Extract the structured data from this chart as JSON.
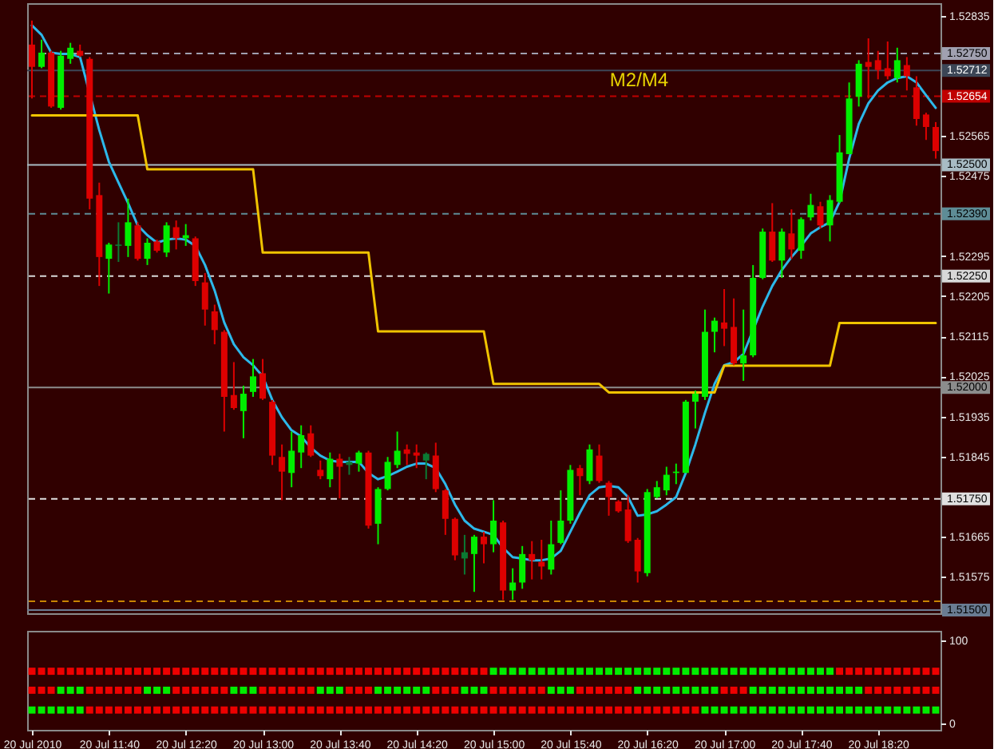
{
  "chart_data": [
    {
      "type": "candlestick",
      "categories": [
        null,
        null,
        null,
        null,
        null,
        null,
        null,
        null,
        null,
        null,
        null,
        null,
        null,
        null,
        null,
        null,
        null,
        null,
        null,
        null,
        null,
        null,
        null,
        null,
        null,
        null,
        null,
        null,
        null,
        null,
        null,
        null,
        null,
        null,
        null,
        null,
        null,
        null,
        null,
        null,
        null,
        null,
        null,
        null,
        null,
        null,
        null,
        null,
        null,
        null,
        null,
        null,
        null,
        null,
        null,
        null,
        null,
        null,
        null,
        null,
        null,
        null,
        null,
        null,
        null,
        null,
        null,
        null,
        null,
        null,
        null,
        null,
        null,
        null,
        null,
        null,
        null,
        null,
        null,
        null,
        null,
        null,
        null,
        null,
        null,
        null,
        null,
        null,
        null,
        null,
        null,
        null,
        null,
        null,
        null
      ],
      "ohlc": [
        [
          1.5277,
          1.52824,
          1.52649,
          1.5272
        ],
        [
          1.5272,
          1.52781,
          1.52717,
          1.52752
        ],
        [
          1.52752,
          1.52756,
          1.52628,
          1.52631
        ],
        [
          1.52628,
          1.52756,
          1.52624,
          1.52745
        ],
        [
          1.52738,
          1.52774,
          1.52727,
          1.52763
        ],
        [
          1.52756,
          1.5277,
          1.52742,
          1.52745
        ],
        [
          1.52738,
          1.52742,
          1.524,
          1.52424
        ],
        [
          1.52432,
          1.5246,
          1.52228,
          1.52293
        ],
        [
          1.52289,
          1.52325,
          1.52211,
          1.52321
        ],
        [
          1.52318,
          1.52371,
          1.52282,
          1.52321
        ],
        [
          1.52318,
          1.52424,
          1.52293,
          1.52371
        ],
        [
          1.52364,
          1.52371,
          1.52285,
          1.52289
        ],
        [
          1.52289,
          1.52335,
          1.52275,
          1.52325
        ],
        [
          1.52328,
          1.52332,
          1.52303,
          1.52307
        ],
        [
          1.52303,
          1.52371,
          1.52293,
          1.52364
        ],
        [
          1.5236,
          1.52375,
          1.5231,
          1.52335
        ],
        [
          1.52335,
          1.52367,
          1.52318,
          1.52342
        ],
        [
          1.52335,
          1.52339,
          1.52228,
          1.52239
        ],
        [
          1.52236,
          1.52257,
          1.52139,
          1.52175
        ],
        [
          1.52171,
          1.52186,
          1.52097,
          1.52129
        ],
        [
          1.52125,
          1.52129,
          1.51901,
          1.51979
        ],
        [
          1.51983,
          1.52057,
          1.5195,
          1.51954
        ],
        [
          1.51947,
          1.52004,
          1.51886,
          1.51986
        ],
        [
          1.5199,
          1.52064,
          1.51979,
          1.52025
        ],
        [
          1.52032,
          1.52064,
          1.51972,
          1.51975
        ],
        [
          1.51968,
          1.51972,
          1.51826,
          1.51847
        ],
        [
          1.51844,
          1.51872,
          1.51747,
          1.51811
        ],
        [
          1.51808,
          1.51901,
          1.51776,
          1.51858
        ],
        [
          1.51854,
          1.51915,
          1.51819,
          1.51893
        ],
        [
          1.51897,
          1.51915,
          1.51844,
          1.51847
        ],
        [
          1.51815,
          1.51836,
          1.51794,
          1.51801
        ],
        [
          1.51794,
          1.51854,
          1.51776,
          1.5184
        ],
        [
          1.5184,
          1.51851,
          1.51751,
          1.51822
        ],
        [
          1.51826,
          1.51844,
          1.51804,
          1.51833
        ],
        [
          1.51829,
          1.51858,
          1.51811,
          1.51854
        ],
        [
          1.51854,
          1.51858,
          1.51683,
          1.5169
        ],
        [
          1.51694,
          1.51776,
          1.51648,
          1.51772
        ],
        [
          1.51772,
          1.51844,
          1.51769,
          1.51833
        ],
        [
          1.51826,
          1.51901,
          1.51819,
          1.51858
        ],
        [
          1.51861,
          1.51872,
          1.51826,
          1.51851
        ],
        [
          1.51854,
          1.51872,
          1.51819,
          1.51847
        ],
        [
          1.51836,
          1.51854,
          1.51794,
          1.51851
        ],
        [
          1.51847,
          1.51876,
          1.51765,
          1.51772
        ],
        [
          1.51769,
          1.51772,
          1.51669,
          1.51705
        ],
        [
          1.51705,
          1.51708,
          1.51612,
          1.51623
        ],
        [
          1.51616,
          1.51669,
          1.5158,
          1.5163
        ],
        [
          1.51626,
          1.51669,
          1.51541,
          1.51665
        ],
        [
          1.51665,
          1.51676,
          1.51605,
          1.51648
        ],
        [
          1.51648,
          1.51747,
          1.5163,
          1.51701
        ],
        [
          1.51697,
          1.51701,
          1.51523,
          1.51544
        ],
        [
          1.51544,
          1.51594,
          1.51523,
          1.51562
        ],
        [
          1.51562,
          1.51644,
          1.51548,
          1.51626
        ],
        [
          1.51626,
          1.51655,
          1.51569,
          1.51612
        ],
        [
          1.51608,
          1.51658,
          1.51569,
          1.51598
        ],
        [
          1.51591,
          1.51701,
          1.5158,
          1.51648
        ],
        [
          1.51651,
          1.51769,
          1.51648,
          1.51701
        ],
        [
          1.51701,
          1.51826,
          1.51694,
          1.51815
        ],
        [
          1.51819,
          1.51826,
          1.51758,
          1.51801
        ],
        [
          1.5179,
          1.51872,
          1.51783,
          1.51861
        ],
        [
          1.51847,
          1.51872,
          1.51786,
          1.5179
        ],
        [
          1.51786,
          1.5179,
          1.51712,
          1.51754
        ],
        [
          1.51744,
          1.51747,
          1.51719,
          1.51722
        ],
        [
          1.51726,
          1.51758,
          1.51651,
          1.51655
        ],
        [
          1.51658,
          1.51662,
          1.51562,
          1.51587
        ],
        [
          1.51583,
          1.51772,
          1.51576,
          1.51765
        ],
        [
          1.51754,
          1.5179,
          1.51751,
          1.51776
        ],
        [
          1.51769,
          1.51822,
          1.51758,
          1.51804
        ],
        [
          1.51808,
          1.51829,
          1.51783,
          1.51811
        ],
        [
          1.51808,
          1.51972,
          1.51808,
          1.51968
        ],
        [
          1.51968,
          1.51993,
          1.51908,
          1.51986
        ],
        [
          1.51979,
          1.52175,
          1.51972,
          1.52125
        ],
        [
          1.52125,
          1.52157,
          1.52079,
          1.5215
        ],
        [
          1.52146,
          1.52221,
          1.52093,
          1.52132
        ],
        [
          1.52136,
          1.522,
          1.5205,
          1.52054
        ],
        [
          1.52054,
          1.52175,
          1.52015,
          1.52072
        ],
        [
          1.52072,
          1.52275,
          1.52068,
          1.52246
        ],
        [
          1.52246,
          1.52357,
          1.52243,
          1.5235
        ],
        [
          1.5235,
          1.52414,
          1.52282,
          1.52285
        ],
        [
          1.52285,
          1.52357,
          1.52246,
          1.5235
        ],
        [
          1.52346,
          1.524,
          1.52289,
          1.5231
        ],
        [
          1.52307,
          1.52382,
          1.52289,
          1.52378
        ],
        [
          1.52382,
          1.52435,
          1.52375,
          1.5241
        ],
        [
          1.52407,
          1.52417,
          1.52357,
          1.52364
        ],
        [
          1.52364,
          1.52432,
          1.52328,
          1.52421
        ],
        [
          1.52417,
          1.52567,
          1.52414,
          1.52528
        ],
        [
          1.52524,
          1.52685,
          1.52524,
          1.52649
        ],
        [
          1.52653,
          1.52735,
          1.52631,
          1.52727
        ],
        [
          1.52731,
          1.52784,
          1.52649,
          1.5272
        ],
        [
          1.52735,
          1.52756,
          1.52692,
          1.52713
        ],
        [
          1.52717,
          1.52777,
          1.52692,
          1.52699
        ],
        [
          1.52695,
          1.52763,
          1.52685,
          1.52735
        ],
        [
          1.52724,
          1.52742,
          1.52667,
          1.52699
        ],
        [
          1.52674,
          1.52699,
          1.52588,
          1.52603
        ],
        [
          1.52613,
          1.52617,
          1.52556,
          1.52585
        ],
        [
          1.52585,
          1.52596,
          1.52514,
          1.52531
        ]
      ],
      "colors": [
        "#dd0000",
        "#00ee00",
        "#dd0000",
        "#00ee00",
        "#00ee00",
        "#dd0000",
        "#dd0000",
        "#dd0000",
        "#00ee00",
        "#0b7a33",
        "#00ee00",
        "#dd0000",
        "#00ee00",
        "#dd0000",
        "#00ee00",
        "#dd0000",
        "#00ee00",
        "#dd0000",
        "#dd0000",
        "#dd0000",
        "#dd0000",
        "#dd0000",
        "#00ee00",
        "#00ee00",
        "#dd0000",
        "#dd0000",
        "#dd0000",
        "#00ee00",
        "#00ee00",
        "#dd0000",
        "#dd0000",
        "#00ee00",
        "#dd0000",
        "#0b7a33",
        "#00ee00",
        "#dd0000",
        "#00ee00",
        "#00ee00",
        "#00ee00",
        "#dd0000",
        "#dd0000",
        "#0b7a33",
        "#dd0000",
        "#dd0000",
        "#dd0000",
        "#0b7a33",
        "#00ee00",
        "#dd0000",
        "#00ee00",
        "#dd0000",
        "#00ee00",
        "#00ee00",
        "#dd0000",
        "#dd0000",
        "#00ee00",
        "#00ee00",
        "#00ee00",
        "#dd0000",
        "#00ee00",
        "#dd0000",
        "#dd0000",
        "#dd0000",
        "#dd0000",
        "#dd0000",
        "#00ee00",
        "#00ee00",
        "#00ee00",
        "#00ee00",
        "#00ee00",
        "#00ee00",
        "#00ee00",
        "#00ee00",
        "#dd0000",
        "#dd0000",
        "#00ee00",
        "#00ee00",
        "#00ee00",
        "#dd0000",
        "#00ee00",
        "#dd0000",
        "#00ee00",
        "#00ee00",
        "#dd0000",
        "#00ee00",
        "#00ee00",
        "#00ee00",
        "#00ee00",
        "#dd0000",
        "#dd0000",
        "#dd0000",
        "#00ee00",
        "#dd0000",
        "#dd0000",
        "#dd0000",
        "#dd0000"
      ],
      "series": [
        {
          "type": "line",
          "color": "#2cb8ea",
          "values": [
            1.52813,
            1.52792,
            1.52752,
            1.52749,
            1.52749,
            1.52742,
            null,
            1.52578,
            1.52507,
            1.5246,
            1.52414,
            1.52364,
            1.52342,
            1.52325,
            1.52332,
            1.52335,
            1.52332,
            1.52318,
            1.52275,
            1.52218,
            1.52146,
            1.52097,
            1.52068,
            1.5205,
            1.52025,
            1.51972,
            1.51933,
            1.51904,
            1.5189,
            1.51865,
            1.51847,
            1.51836,
            1.51833,
            1.51833,
            1.51833,
            1.51808,
            1.51794,
            1.51801,
            1.51811,
            1.51822,
            1.51829,
            1.51829,
            1.51819,
            1.51783,
            1.51737,
            1.51701,
            1.51683,
            1.51676,
            1.51669,
            1.5164,
            1.51619,
            1.51616,
            1.51612,
            1.51612,
            1.51616,
            1.51633,
            1.51676,
            1.51719,
            1.51758,
            1.51776,
            1.51779,
            1.51776,
            1.51754,
            1.51712,
            1.51715,
            1.51722,
            1.51737,
            1.51754,
            1.51808,
            1.51872,
            1.51943,
            1.52008,
            1.5205,
            1.52057,
            1.52075,
            1.52129,
            1.52182,
            1.52228,
            1.52264,
            1.52293,
            1.52318,
            1.52346,
            1.5236,
            1.52371,
            1.52417,
            1.52514,
            1.52592,
            1.52638,
            1.52667,
            1.52685,
            1.52695,
            1.52699,
            1.52685,
            1.52656,
            1.52628
          ]
        },
        {
          "type": "line",
          "color": "#f0c400",
          "values": [
            1.52611,
            1.52611,
            1.52611,
            1.52611,
            1.52611,
            1.52611,
            1.52611,
            1.52611,
            1.52611,
            1.52611,
            1.52611,
            1.52611,
            1.5249,
            1.5249,
            1.5249,
            1.5249,
            1.5249,
            1.5249,
            1.5249,
            1.5249,
            1.5249,
            1.5249,
            1.5249,
            1.5249,
            1.52303,
            1.52303,
            1.52303,
            1.52303,
            1.52303,
            1.52303,
            1.52303,
            1.52303,
            1.52303,
            1.52303,
            1.52303,
            1.52303,
            1.52126,
            1.52126,
            1.52126,
            1.52126,
            1.52126,
            1.52126,
            1.52126,
            1.52126,
            1.52126,
            1.52126,
            1.52126,
            1.52126,
            1.52008,
            1.52008,
            1.52008,
            1.52008,
            1.52008,
            1.52008,
            1.52008,
            1.52008,
            1.52008,
            1.52008,
            1.52008,
            1.52008,
            1.51989,
            1.51989,
            1.51989,
            1.51989,
            1.51989,
            1.51989,
            1.51989,
            1.51989,
            1.51989,
            1.51989,
            1.51989,
            1.51989,
            1.52049,
            1.52049,
            1.52049,
            1.52049,
            1.52049,
            1.52049,
            1.52049,
            1.52049,
            1.52049,
            1.52049,
            1.52049,
            1.52049,
            1.52145,
            1.52145,
            1.52145,
            1.52145,
            1.52145,
            1.52145,
            1.52145,
            1.52145,
            1.52145,
            1.52145,
            1.52145
          ]
        }
      ],
      "ylim": [
        1.51493,
        1.52863
      ],
      "yticks": [
        1.52835,
        1.52565,
        1.52475,
        1.52295,
        1.52205,
        1.52115,
        1.52025,
        1.51935,
        1.51845,
        1.51665,
        1.51575
      ],
      "ref_lines": [
        {
          "axis": "y",
          "value": 1.5275,
          "label": "1.52750",
          "color": "#a0a0b0",
          "line_style": "dashed"
        },
        {
          "axis": "y",
          "value": 1.52712,
          "label": "1.52712",
          "color": "#3c4656",
          "line_style": "solid"
        },
        {
          "axis": "y",
          "value": 1.52654,
          "label": "1.52654",
          "color": "#c00000",
          "line_style": "dashed"
        },
        {
          "axis": "y",
          "value": 1.525,
          "label": "1.52500",
          "color": "#a8bcc4",
          "line_style": "solid"
        },
        {
          "axis": "y",
          "value": 1.5239,
          "label": "1.52390",
          "color": "#5e8c96",
          "line_style": "dashed"
        },
        {
          "axis": "y",
          "value": 1.5225,
          "label": "1.52250",
          "color": "#d8d8d8",
          "line_style": "dashed"
        },
        {
          "axis": "y",
          "value": 1.52,
          "label": "1.52000",
          "color": "#8c8c8c",
          "line_style": "solid"
        },
        {
          "axis": "y",
          "value": 1.5175,
          "label": "1.51750",
          "color": "#e0e0e0",
          "line_style": "dashed"
        },
        {
          "axis": "y",
          "value": 1.5152,
          "color": "#c88400",
          "line_style": "dashed"
        },
        {
          "axis": "y",
          "value": 1.515,
          "label": "1.51500",
          "color": "#6a7c92",
          "line_style": "solid"
        }
      ],
      "annotations": [
        "M2/M4"
      ],
      "tick_labels": "y"
    },
    {
      "type": "scatter",
      "categories": [
        "20 Jul 2010",
        null,
        null,
        null,
        null,
        null,
        null,
        null,
        "20 Jul 11:40",
        null,
        null,
        null,
        null,
        null,
        null,
        null,
        "20 Jul 12:20",
        null,
        null,
        null,
        null,
        null,
        null,
        null,
        "20 Jul 13:00",
        null,
        null,
        null,
        null,
        null,
        null,
        null,
        "20 Jul 13:40",
        null,
        null,
        null,
        null,
        null,
        null,
        null,
        "20 Jul 14:20",
        null,
        null,
        null,
        null,
        null,
        null,
        null,
        "20 Jul 15:00",
        null,
        null,
        null,
        null,
        null,
        null,
        null,
        "20 Jul 15:40",
        null,
        null,
        null,
        null,
        null,
        null,
        null,
        "20 Jul 16:20",
        null,
        null,
        null,
        null,
        null,
        null,
        null,
        "20 Jul 17:00",
        null,
        null,
        null,
        null,
        null,
        null,
        null,
        "20 Jul 17:40",
        null,
        null,
        null,
        null,
        null,
        null,
        null,
        "20 Jul 18:20",
        null,
        null,
        null,
        null,
        null,
        null
      ],
      "marker": "square",
      "series": [
        {
          "values": [
            63,
            63,
            63,
            63,
            63,
            63,
            63,
            63,
            63,
            63,
            63,
            63,
            63,
            63,
            63,
            63,
            63,
            63,
            63,
            63,
            63,
            63,
            63,
            63,
            63,
            63,
            63,
            63,
            63,
            63,
            63,
            63,
            63,
            63,
            63,
            63,
            63,
            63,
            63,
            63,
            63,
            63,
            63,
            63,
            63,
            63,
            63,
            63,
            63,
            63,
            63,
            63,
            63,
            63,
            63,
            63,
            63,
            63,
            63,
            63,
            63,
            63,
            63,
            63,
            63,
            63,
            63,
            63,
            63,
            63,
            63,
            63,
            63,
            63,
            63,
            63,
            63,
            63,
            63,
            63,
            63,
            63,
            63,
            63,
            63,
            63,
            63,
            63,
            63,
            63,
            63,
            63,
            63,
            63,
            63
          ],
          "colors": [
            "#ee0000",
            "#ee0000",
            "#ee0000",
            "#ee0000",
            "#ee0000",
            "#ee0000",
            "#ee0000",
            "#ee0000",
            "#ee0000",
            "#ee0000",
            "#ee0000",
            "#ee0000",
            "#ee0000",
            "#ee0000",
            "#ee0000",
            "#ee0000",
            "#ee0000",
            "#ee0000",
            "#ee0000",
            "#ee0000",
            "#ee0000",
            "#ee0000",
            "#ee0000",
            "#ee0000",
            "#ee0000",
            "#ee0000",
            "#ee0000",
            "#ee0000",
            "#ee0000",
            "#ee0000",
            "#ee0000",
            "#ee0000",
            "#ee0000",
            "#ee0000",
            "#ee0000",
            "#ee0000",
            "#ee0000",
            "#ee0000",
            "#ee0000",
            "#ee0000",
            "#ee0000",
            "#ee0000",
            "#ee0000",
            "#ee0000",
            "#ee0000",
            "#ee0000",
            "#ee0000",
            "#ee0000",
            "#00ee00",
            "#00ee00",
            "#00ee00",
            "#00ee00",
            "#00ee00",
            "#00ee00",
            "#00ee00",
            "#00ee00",
            "#00ee00",
            "#00ee00",
            "#00ee00",
            "#00ee00",
            "#00ee00",
            "#00ee00",
            "#00ee00",
            "#00ee00",
            "#00ee00",
            "#00ee00",
            "#00ee00",
            "#00ee00",
            "#00ee00",
            "#00ee00",
            "#00ee00",
            "#00ee00",
            "#00ee00",
            "#00ee00",
            "#00ee00",
            "#00ee00",
            "#00ee00",
            "#00ee00",
            "#00ee00",
            "#00ee00",
            "#00ee00",
            "#00ee00",
            "#00ee00",
            "#00ee00",
            "#ee0000",
            "#ee0000",
            "#ee0000",
            "#ee0000",
            "#ee0000",
            "#ee0000",
            "#ee0000",
            "#ee0000",
            "#ee0000",
            "#ee0000",
            "#ee0000"
          ]
        },
        {
          "values": [
            40,
            40,
            40,
            40,
            40,
            40,
            40,
            40,
            40,
            40,
            40,
            40,
            40,
            40,
            40,
            40,
            40,
            40,
            40,
            40,
            40,
            40,
            40,
            40,
            40,
            40,
            40,
            40,
            40,
            40,
            40,
            40,
            40,
            40,
            40,
            40,
            40,
            40,
            40,
            40,
            40,
            40,
            40,
            40,
            40,
            40,
            40,
            40,
            40,
            40,
            40,
            40,
            40,
            40,
            40,
            40,
            40,
            40,
            40,
            40,
            40,
            40,
            40,
            40,
            40,
            40,
            40,
            40,
            40,
            40,
            40,
            40,
            40,
            40,
            40,
            40,
            40,
            40,
            40,
            40,
            40,
            40,
            40,
            40,
            40,
            40,
            40,
            40,
            40,
            40,
            40,
            40,
            40,
            40,
            40
          ],
          "colors": [
            "#ee0000",
            "#ee0000",
            "#ee0000",
            "#00ee00",
            "#00ee00",
            "#00ee00",
            "#ee0000",
            "#ee0000",
            "#ee0000",
            "#ee0000",
            "#ee0000",
            "#ee0000",
            "#00ee00",
            "#00ee00",
            "#00ee00",
            "#ee0000",
            "#ee0000",
            "#ee0000",
            "#ee0000",
            "#ee0000",
            "#ee0000",
            "#00ee00",
            "#00ee00",
            "#00ee00",
            "#ee0000",
            "#ee0000",
            "#ee0000",
            "#ee0000",
            "#ee0000",
            "#ee0000",
            "#00ee00",
            "#00ee00",
            "#00ee00",
            "#ee0000",
            "#ee0000",
            "#ee0000",
            "#00ee00",
            "#00ee00",
            "#00ee00",
            "#00ee00",
            "#00ee00",
            "#00ee00",
            "#ee0000",
            "#ee0000",
            "#ee0000",
            "#00ee00",
            "#00ee00",
            "#00ee00",
            "#ee0000",
            "#ee0000",
            "#ee0000",
            "#ee0000",
            "#ee0000",
            "#ee0000",
            "#00ee00",
            "#00ee00",
            "#00ee00",
            "#ee0000",
            "#ee0000",
            "#ee0000",
            "#ee0000",
            "#ee0000",
            "#ee0000",
            "#00ee00",
            "#00ee00",
            "#00ee00",
            "#00ee00",
            "#00ee00",
            "#00ee00",
            "#00ee00",
            "#00ee00",
            "#00ee00",
            "#ee0000",
            "#ee0000",
            "#ee0000",
            "#00ee00",
            "#00ee00",
            "#00ee00",
            "#00ee00",
            "#00ee00",
            "#00ee00",
            "#00ee00",
            "#00ee00",
            "#00ee00",
            "#00ee00",
            "#00ee00",
            "#00ee00",
            "#ee0000",
            "#ee0000",
            "#ee0000",
            "#ee0000",
            "#ee0000",
            "#ee0000",
            "#ee0000",
            "#ee0000"
          ]
        },
        {
          "values": [
            16,
            16,
            16,
            16,
            16,
            16,
            16,
            16,
            16,
            16,
            16,
            16,
            16,
            16,
            16,
            16,
            16,
            16,
            16,
            16,
            16,
            16,
            16,
            16,
            16,
            16,
            16,
            16,
            16,
            16,
            16,
            16,
            16,
            16,
            16,
            16,
            16,
            16,
            16,
            16,
            16,
            16,
            16,
            16,
            16,
            16,
            16,
            16,
            16,
            16,
            16,
            16,
            16,
            16,
            16,
            16,
            16,
            16,
            16,
            16,
            16,
            16,
            16,
            16,
            16,
            16,
            16,
            16,
            16,
            16,
            16,
            16,
            16,
            16,
            16,
            16,
            16,
            16,
            16,
            16,
            16,
            16,
            16,
            16,
            16,
            16,
            16,
            16,
            16,
            16,
            16,
            16,
            16,
            16,
            16
          ],
          "colors": [
            "#00ee00",
            "#00ee00",
            "#00ee00",
            "#00ee00",
            "#00ee00",
            "#00ee00",
            "#ee0000",
            "#ee0000",
            "#ee0000",
            "#ee0000",
            "#ee0000",
            "#ee0000",
            "#ee0000",
            "#ee0000",
            "#ee0000",
            "#ee0000",
            "#ee0000",
            "#ee0000",
            "#ee0000",
            "#ee0000",
            "#ee0000",
            "#ee0000",
            "#ee0000",
            "#ee0000",
            "#ee0000",
            "#ee0000",
            "#ee0000",
            "#ee0000",
            "#ee0000",
            "#ee0000",
            "#ee0000",
            "#ee0000",
            "#ee0000",
            "#ee0000",
            "#ee0000",
            "#ee0000",
            "#ee0000",
            "#ee0000",
            "#ee0000",
            "#ee0000",
            "#ee0000",
            "#ee0000",
            "#ee0000",
            "#ee0000",
            "#ee0000",
            "#ee0000",
            "#ee0000",
            "#ee0000",
            "#ee0000",
            "#ee0000",
            "#ee0000",
            "#ee0000",
            "#ee0000",
            "#ee0000",
            "#ee0000",
            "#ee0000",
            "#ee0000",
            "#ee0000",
            "#ee0000",
            "#ee0000",
            "#ee0000",
            "#ee0000",
            "#ee0000",
            "#ee0000",
            "#ee0000",
            "#ee0000",
            "#ee0000",
            "#ee0000",
            "#ee0000",
            "#ee0000",
            "#00ee00",
            "#00ee00",
            "#00ee00",
            "#00ee00",
            "#00ee00",
            "#00ee00",
            "#00ee00",
            "#00ee00",
            "#00ee00",
            "#00ee00",
            "#00ee00",
            "#00ee00",
            "#00ee00",
            "#00ee00",
            "#00ee00",
            "#00ee00",
            "#00ee00",
            "#00ee00",
            "#00ee00",
            "#00ee00",
            "#00ee00",
            "#00ee00",
            "#00ee00",
            "#00ee00",
            "#00ee00"
          ]
        }
      ],
      "ylim": [
        -8,
        112
      ],
      "yticks": [
        0,
        100
      ]
    }
  ]
}
